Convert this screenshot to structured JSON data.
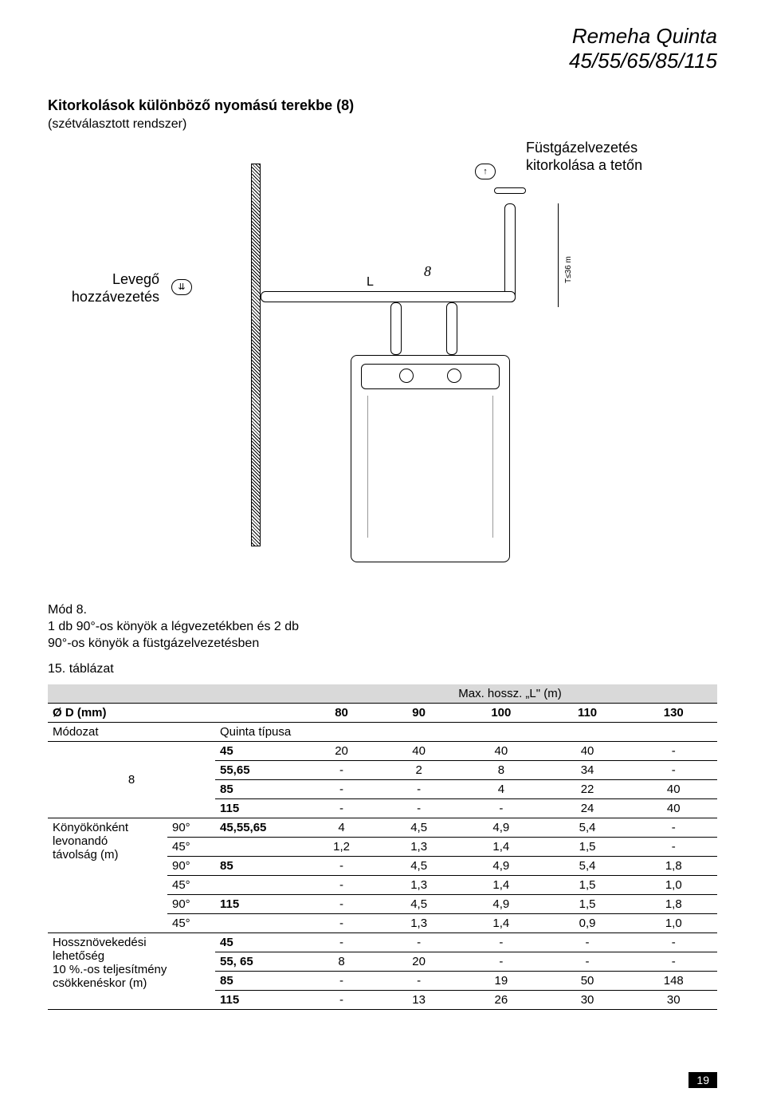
{
  "header": {
    "line1": "Remeha Quinta",
    "line2": "45/55/65/85/115"
  },
  "section": {
    "title": "Kitorkolások különböző nyomású terekbe (8)",
    "subtitle": "(szétválasztott rendszer)"
  },
  "diagram": {
    "label_right1": "Füstgázelvezetés",
    "label_right2": "kitorkolása a tetőn",
    "label_left1": "Levegő",
    "label_left2": "hozzávezetés",
    "eight": "8",
    "L": "L",
    "dim": "T≤36 m"
  },
  "caption": {
    "line1": "Mód 8.",
    "line2": "1 db 90°-os könyök a légvezetékben és 2 db",
    "line3": "90°-os könyök a füstgázelvezetésben"
  },
  "table_title": "15. táblázat",
  "table": {
    "header_span": "Max. hossz. „L\" (m)",
    "h1": "Ø D (mm)",
    "h_cols": [
      "80",
      "90",
      "100",
      "110",
      "130"
    ],
    "r_modozat": "Módozat",
    "r_quinta": "Quinta típusa",
    "mode8_label": "8",
    "mode8_rows": [
      {
        "type": "45",
        "v": [
          "20",
          "40",
          "40",
          "40",
          "-"
        ]
      },
      {
        "type": "55,65",
        "v": [
          "-",
          "2",
          "8",
          "34",
          "-"
        ]
      },
      {
        "type": "85",
        "v": [
          "-",
          "-",
          "4",
          "22",
          "40"
        ]
      },
      {
        "type": "115",
        "v": [
          "-",
          "-",
          "-",
          "24",
          "40"
        ]
      }
    ],
    "elbow_group_label1": "Könyökönként",
    "elbow_group_label2": "levonandó",
    "elbow_group_label3": "távolság (m)",
    "elbow_rows": [
      {
        "sub": "90°",
        "type": "45,55,65",
        "v": [
          "4",
          "4,5",
          "4,9",
          "5,4",
          "-"
        ]
      },
      {
        "sub": "45°",
        "type": "",
        "v": [
          "1,2",
          "1,3",
          "1,4",
          "1,5",
          "-"
        ]
      },
      {
        "sub": "90°",
        "type": "85",
        "v": [
          "-",
          "4,5",
          "4,9",
          "5,4",
          "1,8"
        ]
      },
      {
        "sub": "45°",
        "type": "",
        "v": [
          "-",
          "1,3",
          "1,4",
          "1,5",
          "1,0"
        ]
      },
      {
        "sub": "90°",
        "type": "115",
        "v": [
          "-",
          "4,5",
          "4,9",
          "1,5",
          "1,8"
        ]
      },
      {
        "sub": "45°",
        "type": "",
        "v": [
          "-",
          "1,3",
          "1,4",
          "0,9",
          "1,0"
        ]
      }
    ],
    "growth_label1": "Hossznövekedési",
    "growth_label2": "lehetőség",
    "growth_label3": "10 %.-os teljesítmény",
    "growth_label4": "csökkenéskor (m)",
    "growth_rows": [
      {
        "type": "45",
        "v": [
          "-",
          "-",
          "-",
          "-",
          "-"
        ]
      },
      {
        "type": "55, 65",
        "v": [
          "8",
          "20",
          "-",
          "-",
          "-"
        ]
      },
      {
        "type": "85",
        "v": [
          "-",
          "-",
          "19",
          "50",
          "148"
        ]
      },
      {
        "type": "115",
        "v": [
          "-",
          "13",
          "26",
          "30",
          "30"
        ]
      }
    ]
  },
  "page_number": "19"
}
